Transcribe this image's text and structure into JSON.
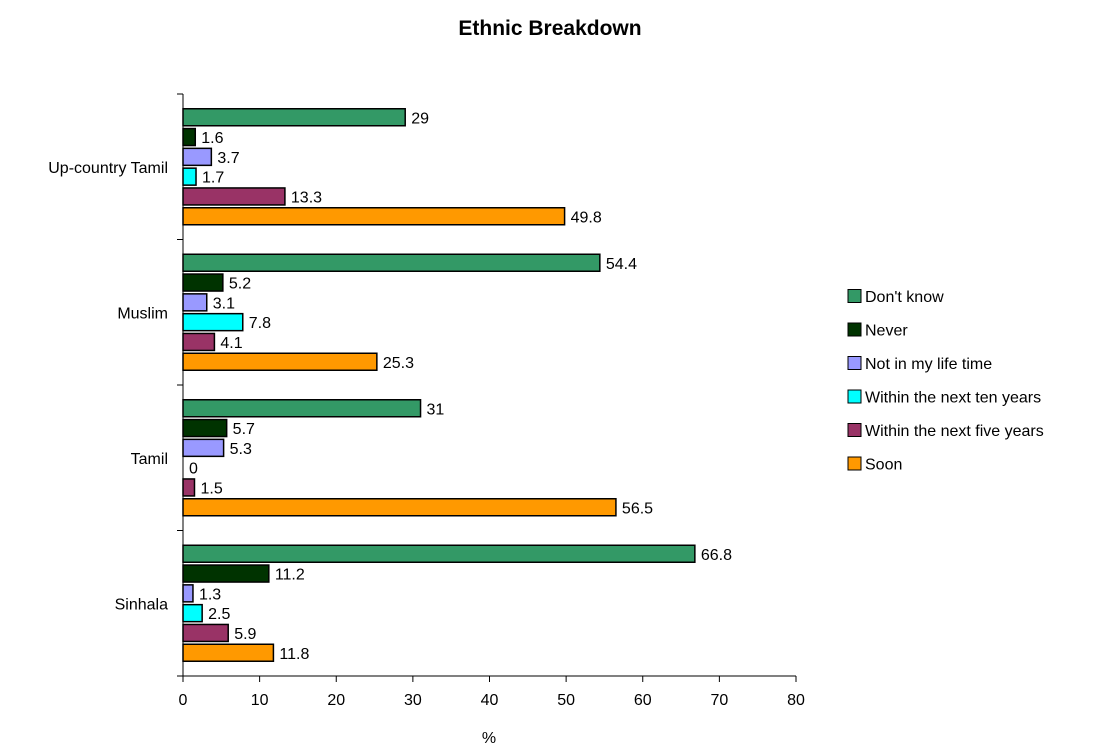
{
  "chart_data": {
    "type": "bar",
    "orientation": "horizontal",
    "title": "Ethnic Breakdown",
    "xlabel": "%",
    "ylabel": "",
    "xlim": [
      0,
      80
    ],
    "x_ticks": [
      0,
      10,
      20,
      30,
      40,
      50,
      60,
      70,
      80
    ],
    "grid": false,
    "legend_position": "right",
    "categories": [
      "Up-country Tamil",
      "Muslim",
      "Tamil",
      "Sinhala"
    ],
    "series": [
      {
        "name": "Don't know",
        "color": "#339966",
        "values": [
          29,
          54.4,
          31,
          66.8
        ],
        "labels": [
          "29",
          "54.4",
          "31",
          "66.8"
        ]
      },
      {
        "name": "Never",
        "color": "#003300",
        "values": [
          1.6,
          5.2,
          5.7,
          11.2
        ],
        "labels": [
          "1.6",
          "5.2",
          "5.7",
          "11.2"
        ]
      },
      {
        "name": "Not in my life time",
        "color": "#9999FF",
        "values": [
          3.7,
          3.1,
          5.3,
          1.3
        ],
        "labels": [
          "3.7",
          "3.1",
          "5.3",
          "1.3"
        ]
      },
      {
        "name": "Within the next ten years",
        "color": "#00FFFF",
        "values": [
          1.7,
          7.8,
          0,
          2.5
        ],
        "labels": [
          "1.7",
          "7.8",
          "0",
          "2.5"
        ]
      },
      {
        "name": "Within the next five years",
        "color": "#993366",
        "values": [
          13.3,
          4.1,
          1.5,
          5.9
        ],
        "labels": [
          "13.3",
          "4.1",
          "1.5",
          "5.9"
        ]
      },
      {
        "name": "Soon",
        "color": "#FF9900",
        "values": [
          49.8,
          25.3,
          56.5,
          11.8
        ],
        "labels": [
          "49.8",
          "25.3",
          "56.5",
          "11.8"
        ]
      }
    ]
  }
}
